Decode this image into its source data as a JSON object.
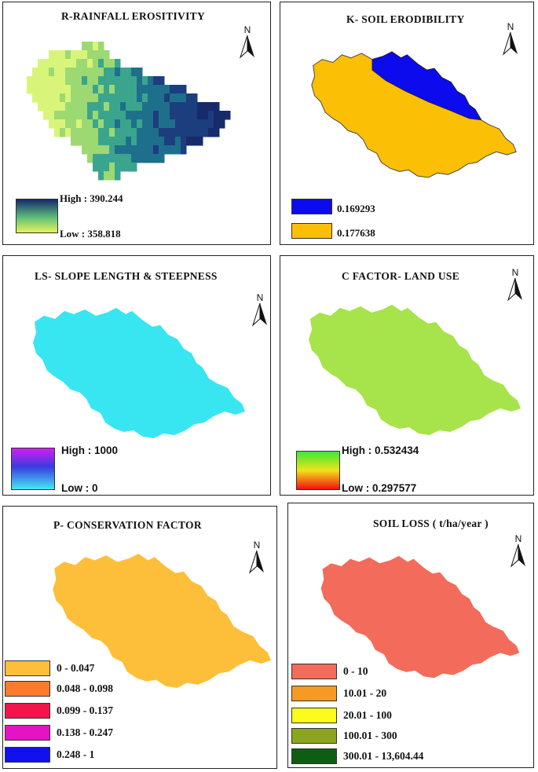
{
  "north_label": "N",
  "panels": {
    "r": {
      "title": "R-RAINFALL EROSITIVITY",
      "legend": {
        "high": "High : 390.244",
        "low": "Low : 358.818"
      },
      "colors": [
        "#d8f57a",
        "#9cd972",
        "#3aa58c",
        "#1e6f8c",
        "#1c3d7e",
        "#172a6b"
      ]
    },
    "k": {
      "title": "K- SOIL ERODIBILITY",
      "legend": [
        {
          "label": "0.169293",
          "color": "#0b0bee"
        },
        {
          "label": "0.177638",
          "color": "#fbbf05"
        }
      ]
    },
    "ls": {
      "title": "LS- SLOPE LENGTH & STEEPNESS",
      "legend": {
        "high": "High : 1000",
        "low": "Low : 0"
      },
      "colors": {
        "base": "#38e6f2",
        "stream": "#3b33d8"
      }
    },
    "c": {
      "title": "C FACTOR- LAND USE",
      "legend": {
        "high": "High : 0.532434",
        "low": "Low : 0.297577"
      },
      "colors": {
        "base": "#a7e34a",
        "spot": "#d9401a"
      }
    },
    "p": {
      "title": "P- CONSERVATION FACTOR",
      "legend": [
        {
          "label": "0 - 0.047",
          "color": "#fdbf3a"
        },
        {
          "label": "0.048 - 0.098",
          "color": "#fb7a2b"
        },
        {
          "label": "0.099 - 0.137",
          "color": "#f4134a"
        },
        {
          "label": "0.138 - 0.247",
          "color": "#e413c4"
        },
        {
          "label": "0.248 - 1",
          "color": "#1010f0"
        }
      ]
    },
    "soil": {
      "title": "SOIL LOSS ( t/ha/year )",
      "legend": [
        {
          "label": "0 - 10",
          "color": "#f36b5a"
        },
        {
          "label": "10.01 - 20",
          "color": "#f79a24"
        },
        {
          "label": "20.01 - 100",
          "color": "#fbfb1c"
        },
        {
          "label": "100.01 - 300",
          "color": "#8aa61c"
        },
        {
          "label": "300.01 - 13,604.44",
          "color": "#0e5e12"
        }
      ]
    }
  }
}
